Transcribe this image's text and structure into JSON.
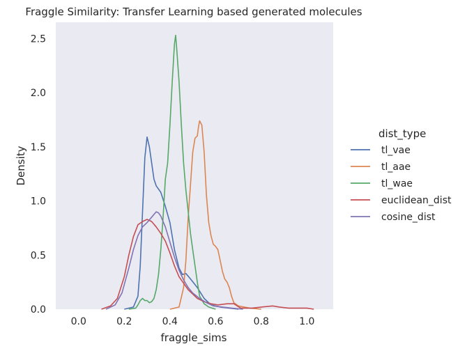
{
  "chart_data": {
    "type": "line",
    "title": "Fraggle Similarity: Transfer Learning based generated molecules",
    "xlabel": "fraggle_sims",
    "ylabel": "Density",
    "xlim": [
      -0.1,
      1.115
    ],
    "ylim": [
      0,
      2.65
    ],
    "x_ticks": [
      0.0,
      0.2,
      0.4,
      0.6,
      0.8,
      1.0
    ],
    "x_tick_labels": [
      "0.0",
      "0.2",
      "0.4",
      "0.6",
      "0.8",
      "1.0"
    ],
    "y_ticks": [
      0.0,
      0.5,
      1.0,
      1.5,
      2.0,
      2.5
    ],
    "y_tick_labels": [
      "0.0",
      "0.5",
      "1.0",
      "1.5",
      "2.0",
      "2.5"
    ],
    "grid": false,
    "background": "#eaeaf2",
    "legend": {
      "title": "dist_type",
      "position": "right"
    },
    "series": [
      {
        "name": "tl_vae",
        "color": "#4c72b0",
        "points": [
          [
            0.2,
            0.0
          ],
          [
            0.24,
            0.02
          ],
          [
            0.26,
            0.12
          ],
          [
            0.27,
            0.4
          ],
          [
            0.28,
            0.9
          ],
          [
            0.29,
            1.4
          ],
          [
            0.3,
            1.59
          ],
          [
            0.31,
            1.5
          ],
          [
            0.32,
            1.35
          ],
          [
            0.33,
            1.2
          ],
          [
            0.34,
            1.14
          ],
          [
            0.36,
            1.08
          ],
          [
            0.38,
            0.95
          ],
          [
            0.4,
            0.8
          ],
          [
            0.42,
            0.55
          ],
          [
            0.44,
            0.38
          ],
          [
            0.455,
            0.32
          ],
          [
            0.47,
            0.33
          ],
          [
            0.49,
            0.28
          ],
          [
            0.52,
            0.2
          ],
          [
            0.55,
            0.1
          ],
          [
            0.58,
            0.04
          ],
          [
            0.62,
            0.02
          ],
          [
            0.66,
            0.01
          ],
          [
            0.7,
            0.0
          ]
        ]
      },
      {
        "name": "tl_aae",
        "color": "#dd8452",
        "points": [
          [
            0.4,
            0.0
          ],
          [
            0.44,
            0.02
          ],
          [
            0.46,
            0.2
          ],
          [
            0.47,
            0.45
          ],
          [
            0.48,
            0.85
          ],
          [
            0.49,
            1.15
          ],
          [
            0.5,
            1.45
          ],
          [
            0.51,
            1.58
          ],
          [
            0.52,
            1.6
          ],
          [
            0.525,
            1.68
          ],
          [
            0.53,
            1.74
          ],
          [
            0.54,
            1.7
          ],
          [
            0.55,
            1.45
          ],
          [
            0.56,
            1.05
          ],
          [
            0.57,
            0.8
          ],
          [
            0.58,
            0.68
          ],
          [
            0.59,
            0.6
          ],
          [
            0.6,
            0.58
          ],
          [
            0.61,
            0.55
          ],
          [
            0.62,
            0.45
          ],
          [
            0.63,
            0.35
          ],
          [
            0.64,
            0.28
          ],
          [
            0.65,
            0.25
          ],
          [
            0.66,
            0.2
          ],
          [
            0.67,
            0.12
          ],
          [
            0.68,
            0.06
          ],
          [
            0.7,
            0.03
          ],
          [
            0.75,
            0.01
          ],
          [
            0.8,
            0.0
          ]
        ]
      },
      {
        "name": "tl_wae",
        "color": "#55a868",
        "points": [
          [
            0.22,
            0.0
          ],
          [
            0.25,
            0.01
          ],
          [
            0.26,
            0.04
          ],
          [
            0.27,
            0.08
          ],
          [
            0.28,
            0.1
          ],
          [
            0.29,
            0.08
          ],
          [
            0.3,
            0.08
          ],
          [
            0.31,
            0.06
          ],
          [
            0.32,
            0.07
          ],
          [
            0.33,
            0.1
          ],
          [
            0.34,
            0.18
          ],
          [
            0.35,
            0.32
          ],
          [
            0.36,
            0.55
          ],
          [
            0.37,
            0.85
          ],
          [
            0.38,
            1.2
          ],
          [
            0.39,
            1.35
          ],
          [
            0.4,
            1.7
          ],
          [
            0.41,
            2.1
          ],
          [
            0.42,
            2.45
          ],
          [
            0.425,
            2.53
          ],
          [
            0.43,
            2.4
          ],
          [
            0.44,
            2.1
          ],
          [
            0.45,
            1.7
          ],
          [
            0.46,
            1.35
          ],
          [
            0.47,
            1.1
          ],
          [
            0.48,
            0.9
          ],
          [
            0.49,
            0.7
          ],
          [
            0.5,
            0.55
          ],
          [
            0.51,
            0.4
          ],
          [
            0.52,
            0.25
          ],
          [
            0.53,
            0.12
          ],
          [
            0.55,
            0.05
          ],
          [
            0.57,
            0.02
          ],
          [
            0.6,
            0.0
          ]
        ]
      },
      {
        "name": "euclidean_dist",
        "color": "#c44e52",
        "points": [
          [
            0.1,
            0.0
          ],
          [
            0.14,
            0.03
          ],
          [
            0.17,
            0.1
          ],
          [
            0.2,
            0.3
          ],
          [
            0.22,
            0.5
          ],
          [
            0.24,
            0.67
          ],
          [
            0.26,
            0.78
          ],
          [
            0.28,
            0.81
          ],
          [
            0.3,
            0.83
          ],
          [
            0.32,
            0.81
          ],
          [
            0.34,
            0.76
          ],
          [
            0.36,
            0.7
          ],
          [
            0.38,
            0.63
          ],
          [
            0.4,
            0.52
          ],
          [
            0.42,
            0.4
          ],
          [
            0.44,
            0.3
          ],
          [
            0.46,
            0.24
          ],
          [
            0.48,
            0.18
          ],
          [
            0.5,
            0.14
          ],
          [
            0.52,
            0.1
          ],
          [
            0.55,
            0.07
          ],
          [
            0.58,
            0.05
          ],
          [
            0.61,
            0.04
          ],
          [
            0.65,
            0.05
          ],
          [
            0.68,
            0.05
          ],
          [
            0.71,
            0.01
          ],
          [
            0.76,
            0.01
          ],
          [
            0.8,
            0.02
          ],
          [
            0.85,
            0.03
          ],
          [
            0.88,
            0.02
          ],
          [
            0.92,
            0.01
          ],
          [
            0.96,
            0.01
          ],
          [
            1.0,
            0.01
          ],
          [
            1.03,
            0.0
          ]
        ]
      },
      {
        "name": "cosine_dist",
        "color": "#8172b3",
        "points": [
          [
            0.12,
            0.0
          ],
          [
            0.16,
            0.04
          ],
          [
            0.19,
            0.15
          ],
          [
            0.22,
            0.38
          ],
          [
            0.24,
            0.55
          ],
          [
            0.26,
            0.68
          ],
          [
            0.28,
            0.76
          ],
          [
            0.3,
            0.8
          ],
          [
            0.32,
            0.85
          ],
          [
            0.34,
            0.9
          ],
          [
            0.35,
            0.89
          ],
          [
            0.36,
            0.86
          ],
          [
            0.38,
            0.76
          ],
          [
            0.4,
            0.62
          ],
          [
            0.42,
            0.48
          ],
          [
            0.44,
            0.36
          ],
          [
            0.46,
            0.27
          ],
          [
            0.48,
            0.2
          ],
          [
            0.5,
            0.15
          ],
          [
            0.53,
            0.1
          ],
          [
            0.56,
            0.06
          ],
          [
            0.59,
            0.03
          ],
          [
            0.63,
            0.02
          ],
          [
            0.67,
            0.01
          ],
          [
            0.72,
            0.0
          ]
        ]
      }
    ]
  }
}
